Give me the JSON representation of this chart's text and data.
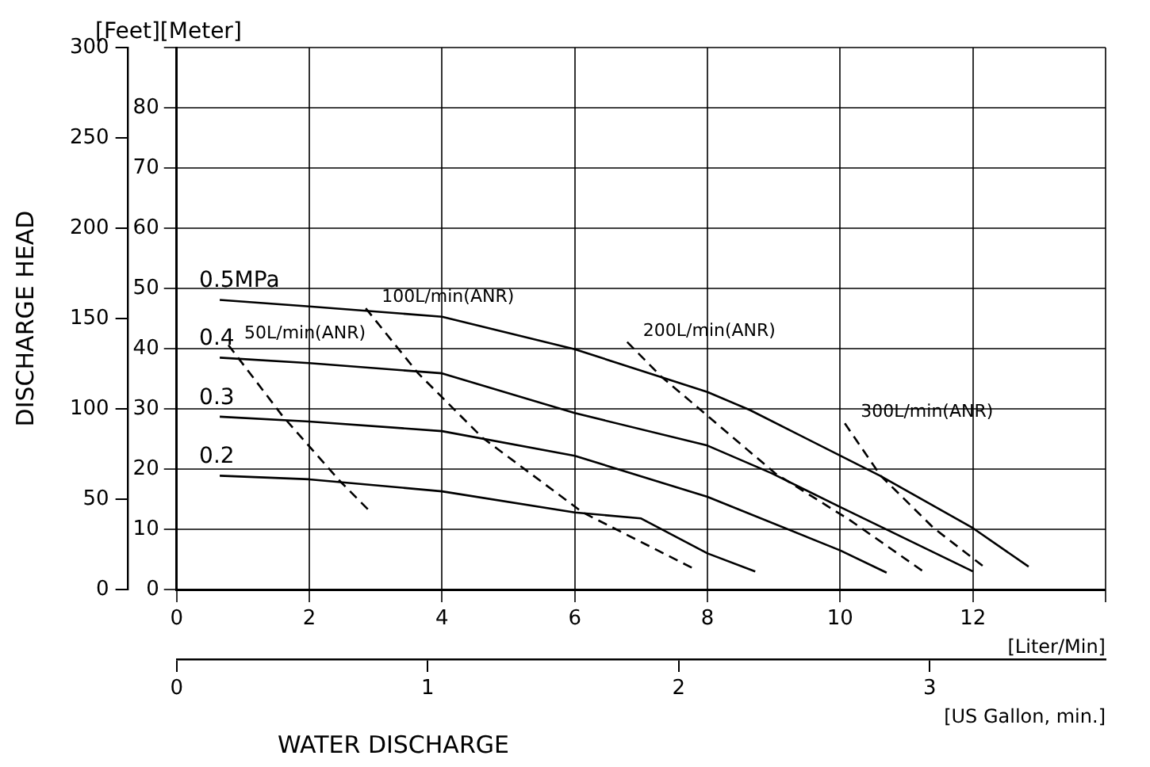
{
  "chart_data": {
    "type": "line",
    "xlabel": "[Liter/Min]",
    "y2label": "DISCHARGE HEAD",
    "x2label": "[US Gallon, min.]",
    "xlim": [
      0,
      14
    ],
    "xticks": [
      0,
      2,
      4,
      6,
      8,
      10,
      12,
      {
        "value": 14,
        "label": null
      }
    ],
    "ylim": [
      0,
      90
    ],
    "yticks": [
      0,
      10,
      20,
      30,
      40,
      50,
      60,
      70,
      80,
      {
        "value": 90,
        "label": null
      }
    ],
    "y2lim": [
      0,
      300
    ],
    "y2ticks": [
      0,
      50,
      100,
      150,
      200,
      250,
      300
    ],
    "x2lim": [
      0,
      3.7
    ],
    "x2ticks": [
      0,
      1,
      2,
      3
    ],
    "grid": true,
    "marker": "none",
    "series": [
      {
        "name": "0.5MPa",
        "color": "#000000",
        "line_style": "solid",
        "x": [
          0.65,
          2,
          4,
          6,
          8,
          8.64,
          10.6,
          12,
          12.84
        ],
        "values": [
          48.1,
          47,
          45.3,
          39.9,
          32.8,
          29.8,
          18.9,
          10.2,
          3.8
        ]
      },
      {
        "name": "0.4",
        "color": "#000000",
        "line_style": "solid",
        "x": [
          0.65,
          2,
          4,
          6,
          8,
          8.97,
          10,
          12
        ],
        "values": [
          38.5,
          37.6,
          35.9,
          29.3,
          23.9,
          19.3,
          13.7,
          3
        ]
      },
      {
        "name": "0.3",
        "color": "#000000",
        "line_style": "solid",
        "x": [
          0.65,
          2,
          4,
          6,
          8,
          10,
          10.7
        ],
        "values": [
          28.7,
          27.9,
          26.3,
          22.2,
          15.4,
          6.5,
          2.8
        ]
      },
      {
        "name": "0.2",
        "color": "#000000",
        "line_style": "solid",
        "x": [
          0.65,
          2,
          4,
          6,
          7,
          8,
          8.72
        ],
        "values": [
          18.9,
          18.3,
          16.3,
          12.8,
          11.8,
          6,
          3
        ]
      },
      {
        "name": "50L/min(ANR)",
        "color": "#000000",
        "line_style": "dashed",
        "x": [
          0.78,
          1.59,
          2.47,
          2.93
        ],
        "values": [
          40.6,
          28.9,
          17.9,
          12.8
        ]
      },
      {
        "name": "100L/min(ANR)",
        "color": "#000000",
        "line_style": "dashed",
        "x": [
          2.85,
          3.64,
          4.61,
          6.12,
          7.84
        ],
        "values": [
          46.7,
          35.9,
          25.2,
          12.8,
          3.2
        ]
      },
      {
        "name": "200L/min(ANR)",
        "color": "#000000",
        "line_style": "dashed",
        "x": [
          6.79,
          7.3,
          9.02,
          10.15,
          11.24
        ],
        "values": [
          41.1,
          35.4,
          19.3,
          11.5,
          3.1
        ]
      },
      {
        "name": "300L/min(ANR)",
        "color": "#000000",
        "line_style": "dashed",
        "x": [
          10.07,
          10.61,
          11.41,
          12.21
        ],
        "values": [
          27.6,
          18.9,
          10.2,
          3.4
        ]
      }
    ],
    "annotations": [
      "[Feet][Meter]",
      "WATER DISCHARGE"
    ]
  }
}
